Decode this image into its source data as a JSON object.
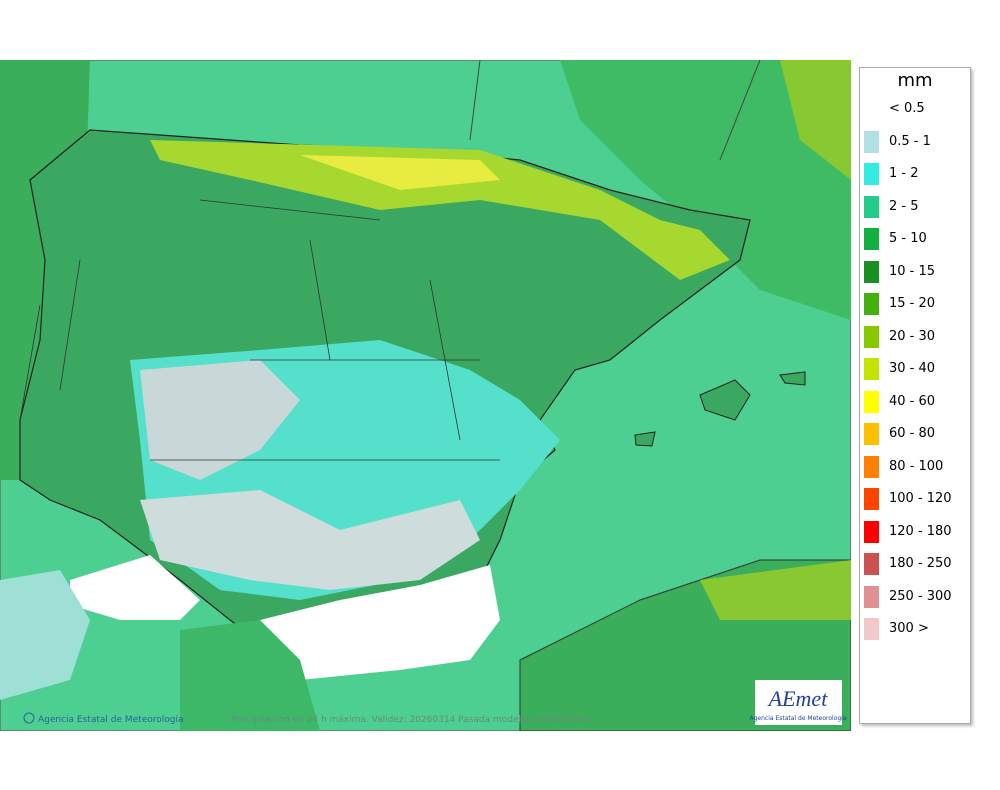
{
  "legend": {
    "title": "mm",
    "items": [
      {
        "label": "< 0.5",
        "color": "#ffffff"
      },
      {
        "label": "0.5 - 1",
        "color": "#b0e0e6"
      },
      {
        "label": "1 - 2",
        "color": "#33ece0"
      },
      {
        "label": "2 - 5",
        "color": "#22cc8a"
      },
      {
        "label": "5 - 10",
        "color": "#12b040"
      },
      {
        "label": "10 - 15",
        "color": "#189020"
      },
      {
        "label": "15 - 20",
        "color": "#44b010"
      },
      {
        "label": "20 - 30",
        "color": "#88c800"
      },
      {
        "label": "30 - 40",
        "color": "#c4e400"
      },
      {
        "label": "40 - 60",
        "color": "#ffff00"
      },
      {
        "label": "60 - 80",
        "color": "#ffc000"
      },
      {
        "label": "80 - 100",
        "color": "#ff8000"
      },
      {
        "label": "100 - 120",
        "color": "#ff4400"
      },
      {
        "label": "120 - 180",
        "color": "#ff0000"
      },
      {
        "label": "180 - 250",
        "color": "#cc5050"
      },
      {
        "label": "250 - 300",
        "color": "#e09090"
      },
      {
        "label": "300 >",
        "color": "#f2c8c8"
      }
    ]
  },
  "footer": {
    "credit": "Agencia Estatal de Meteorología",
    "caption": "Precipitación en 24 h máxima. Validez: 20260314 Pasada modelo: 2026031300"
  },
  "logo": {
    "name": "AEmet",
    "subtitle": "Agencia Estatal de Meteorología"
  }
}
